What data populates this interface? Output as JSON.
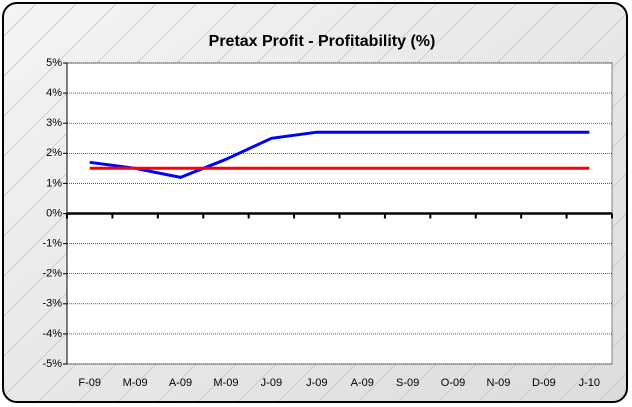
{
  "chart_data": {
    "type": "line",
    "title": "Pretax Profit - Profitability (%)",
    "categories": [
      "F-09",
      "M-09",
      "A-09",
      "M-09",
      "J-09",
      "J-09",
      "A-09",
      "S-09",
      "O-09",
      "N-09",
      "D-09",
      "J-10"
    ],
    "series": [
      {
        "color": "#0000ff",
        "values": [
          1.7,
          1.5,
          1.2,
          1.8,
          2.5,
          2.7,
          2.7,
          2.7,
          2.7,
          2.7,
          2.7,
          2.7
        ]
      },
      {
        "color": "#ff0000",
        "values": [
          1.5,
          1.5,
          1.5,
          1.5,
          1.5,
          1.5,
          1.5,
          1.5,
          1.5,
          1.5,
          1.5,
          1.5
        ]
      }
    ],
    "ylim": [
      -5,
      5
    ],
    "yticks": [
      {
        "value": -5,
        "label": "-5%"
      },
      {
        "value": -4,
        "label": "-4%"
      },
      {
        "value": -3,
        "label": "-3%"
      },
      {
        "value": -2,
        "label": "-2%"
      },
      {
        "value": -1,
        "label": "-1%"
      },
      {
        "value": 0,
        "label": "0%"
      },
      {
        "value": 1,
        "label": "1%"
      },
      {
        "value": 2,
        "label": "2%"
      },
      {
        "value": 3,
        "label": "3%"
      },
      {
        "value": 4,
        "label": "4%"
      },
      {
        "value": 5,
        "label": "5%"
      }
    ],
    "grid": true
  }
}
